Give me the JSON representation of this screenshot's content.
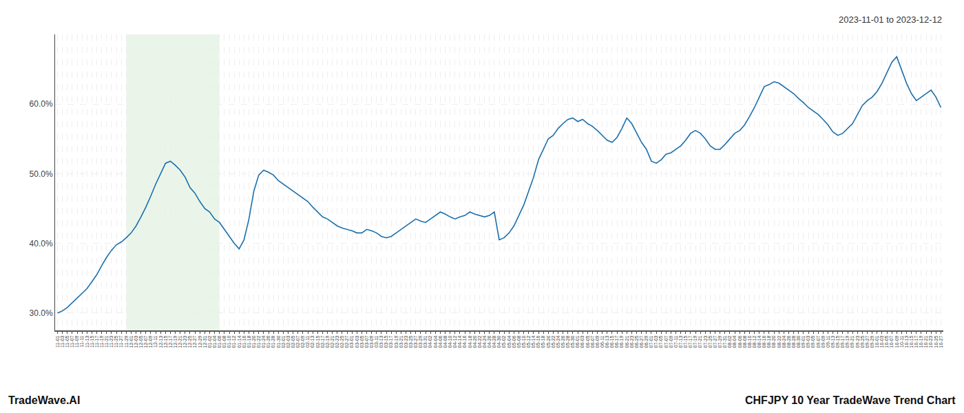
{
  "chart_data": {
    "type": "line",
    "title": "CHFJPY 10 Year TradeWave Trend Chart",
    "subtitle": "2023-11-01 to 2023-12-12",
    "annotations": [
      "TradeWave.AI"
    ],
    "color": "#1a6fab",
    "grid": true,
    "shaded_range": [
      "11-29",
      "01-06"
    ],
    "shade_color": "#c8e6c9",
    "ylim": [
      27.5,
      70.0
    ],
    "yticks": [
      {
        "value": 30.0,
        "label": "30.0%"
      },
      {
        "value": 40.0,
        "label": "40.0%"
      },
      {
        "value": 50.0,
        "label": "50.0%"
      },
      {
        "value": 60.0,
        "label": "60.0%"
      }
    ],
    "categories": [
      "11-01",
      "11-03",
      "11-05",
      "11-07",
      "11-09",
      "11-11",
      "11-13",
      "11-15",
      "11-17",
      "11-19",
      "11-21",
      "11-23",
      "11-25",
      "11-27",
      "11-29",
      "12-01",
      "12-03",
      "12-05",
      "12-07",
      "12-09",
      "12-11",
      "12-13",
      "12-15",
      "12-17",
      "12-19",
      "12-21",
      "12-23",
      "12-25",
      "12-27",
      "12-29",
      "12-31",
      "01-02",
      "01-04",
      "01-06",
      "01-08",
      "01-10",
      "01-12",
      "01-14",
      "01-16",
      "01-18",
      "01-20",
      "01-22",
      "01-24",
      "01-26",
      "01-28",
      "01-30",
      "02-01",
      "02-03",
      "02-05",
      "02-07",
      "02-09",
      "02-11",
      "02-13",
      "02-15",
      "02-17",
      "02-19",
      "02-21",
      "02-23",
      "02-25",
      "02-27",
      "03-01",
      "03-03",
      "03-05",
      "03-07",
      "03-09",
      "03-11",
      "03-13",
      "03-15",
      "03-17",
      "03-19",
      "03-21",
      "03-23",
      "03-25",
      "03-27",
      "03-29",
      "03-31",
      "04-02",
      "04-04",
      "04-06",
      "04-08",
      "04-10",
      "04-12",
      "04-14",
      "04-16",
      "04-18",
      "04-20",
      "04-22",
      "04-24",
      "04-26",
      "04-28",
      "04-30",
      "05-02",
      "05-04",
      "05-06",
      "05-08",
      "05-10",
      "05-12",
      "05-14",
      "05-16",
      "05-18",
      "05-20",
      "05-22",
      "05-24",
      "05-26",
      "05-28",
      "05-30",
      "06-01",
      "06-03",
      "06-05",
      "06-07",
      "06-09",
      "06-11",
      "06-13",
      "06-15",
      "06-17",
      "06-19",
      "06-21",
      "06-23",
      "06-25",
      "06-27",
      "06-29",
      "07-01",
      "07-03",
      "07-05",
      "07-07",
      "07-09",
      "07-11",
      "07-13",
      "07-15",
      "07-17",
      "07-19",
      "07-21",
      "07-23",
      "07-25",
      "07-27",
      "07-29",
      "07-31",
      "08-02",
      "08-04",
      "08-06",
      "08-08",
      "08-10",
      "08-12",
      "08-14",
      "08-16",
      "08-18",
      "08-20",
      "08-22",
      "08-24",
      "08-26",
      "08-28",
      "08-30",
      "09-01",
      "09-03",
      "09-05",
      "09-07",
      "09-09",
      "09-11",
      "09-13",
      "09-15",
      "09-17",
      "09-19",
      "09-21",
      "09-23",
      "09-25",
      "09-27",
      "09-29",
      "10-01",
      "10-03",
      "10-05",
      "10-07",
      "10-09",
      "10-11",
      "10-13",
      "10-15",
      "10-17",
      "10-19",
      "10-21",
      "10-23",
      "10-25",
      "10-27"
    ],
    "values": [
      30.0,
      30.3,
      30.8,
      31.5,
      32.2,
      32.8,
      33.5,
      34.5,
      35.5,
      36.8,
      38.0,
      39.0,
      39.8,
      40.2,
      40.8,
      41.5,
      42.5,
      43.8,
      45.2,
      46.8,
      48.5,
      50.0,
      51.5,
      51.8,
      51.2,
      50.5,
      49.5,
      48.0,
      47.2,
      46.0,
      45.0,
      44.5,
      43.5,
      43.0,
      42.0,
      41.0,
      40.0,
      39.2,
      40.5,
      43.5,
      47.5,
      49.8,
      50.5,
      50.2,
      49.8,
      49.0,
      48.5,
      48.0,
      47.5,
      47.0,
      46.5,
      46.0,
      45.2,
      44.5,
      43.8,
      43.5,
      43.0,
      42.5,
      42.2,
      42.0,
      41.8,
      41.5,
      41.5,
      42.0,
      41.8,
      41.5,
      41.0,
      40.8,
      41.0,
      41.5,
      42.0,
      42.5,
      43.0,
      43.5,
      43.2,
      43.0,
      43.5,
      44.0,
      44.5,
      44.2,
      43.8,
      43.5,
      43.8,
      44.0,
      44.5,
      44.2,
      44.0,
      43.8,
      44.0,
      44.5,
      40.5,
      40.8,
      41.5,
      42.5,
      44.0,
      45.5,
      47.5,
      49.5,
      52.0,
      53.5,
      55.0,
      55.5,
      56.5,
      57.2,
      57.8,
      58.0,
      57.5,
      57.8,
      57.2,
      56.8,
      56.2,
      55.5,
      54.8,
      54.5,
      55.2,
      56.5,
      58.0,
      57.2,
      55.8,
      54.5,
      53.5,
      51.8,
      51.5,
      52.0,
      52.8,
      53.0,
      53.5,
      54.0,
      54.8,
      55.8,
      56.2,
      55.8,
      55.0,
      54.0,
      53.5,
      53.5,
      54.2,
      55.0,
      55.8,
      56.2,
      57.0,
      58.2,
      59.5,
      61.0,
      62.5,
      62.8,
      63.2,
      63.0,
      62.5,
      62.0,
      61.5,
      60.8,
      60.2,
      59.5,
      59.0,
      58.5,
      57.8,
      57.0,
      56.0,
      55.5,
      55.8,
      56.5,
      57.2,
      58.5,
      59.8,
      60.5,
      61.0,
      61.8,
      63.0,
      64.5,
      66.0,
      66.8,
      65.0,
      63.0,
      61.5,
      60.5,
      61.0,
      61.5,
      62.0,
      61.0,
      59.5
    ]
  }
}
